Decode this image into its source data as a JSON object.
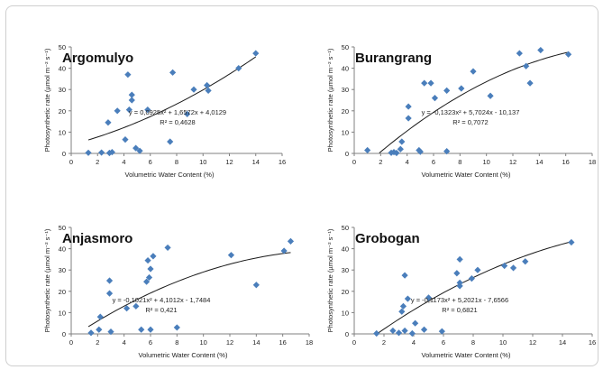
{
  "colors": {
    "marker": "#4a7ebb",
    "curve": "#1a1a1a",
    "axis": "#808080",
    "text": "#222222"
  },
  "chart_data": [
    {
      "type": "scatter",
      "title": "Argomulyo",
      "xlabel": "Volumetric Water Content (%)",
      "ylabel": "Photosynthetic rate (µmol m⁻² s⁻¹)",
      "xlim": [
        0,
        16
      ],
      "ylim": [
        0,
        50
      ],
      "xticks": [
        0,
        2,
        4,
        6,
        8,
        10,
        12,
        14,
        16
      ],
      "yticks": [
        0,
        10,
        20,
        30,
        40,
        50
      ],
      "trend": {
        "a": 0.0925,
        "b": 1.6572,
        "c": 4.0129,
        "x_range": [
          1.3,
          14.0
        ]
      },
      "equation": "y = 0,0925x² + 1,6572x + 4,0129",
      "r2": "R² = 0,4628",
      "points": [
        [
          1.3,
          0.3
        ],
        [
          2.3,
          0.4
        ],
        [
          2.8,
          14.5
        ],
        [
          2.9,
          0.2
        ],
        [
          3.1,
          0.6
        ],
        [
          3.5,
          20
        ],
        [
          4.1,
          6.5
        ],
        [
          4.3,
          37
        ],
        [
          4.4,
          20.5
        ],
        [
          4.6,
          27.5
        ],
        [
          4.6,
          25
        ],
        [
          4.9,
          2.5
        ],
        [
          5.2,
          1.2
        ],
        [
          5.8,
          20.5
        ],
        [
          7.5,
          5.5
        ],
        [
          7.7,
          38
        ],
        [
          8.8,
          18.5
        ],
        [
          9.3,
          30
        ],
        [
          10.3,
          32
        ],
        [
          10.4,
          29.5
        ],
        [
          12.7,
          40
        ],
        [
          14.0,
          47
        ]
      ]
    },
    {
      "type": "scatter",
      "title": "Burangrang",
      "xlabel": "Volumetric Water Content (%)",
      "ylabel": "Photosynthetic rate (µmol m⁻² s⁻¹)",
      "xlim": [
        0,
        18
      ],
      "ylim": [
        0,
        50
      ],
      "xticks": [
        0,
        2,
        4,
        6,
        8,
        10,
        12,
        14,
        16,
        18
      ],
      "yticks": [
        0,
        10,
        20,
        30,
        40,
        50
      ],
      "trend": {
        "a": -0.1323,
        "b": 5.7024,
        "c": -10.137,
        "x_range": [
          1.9,
          16.2
        ]
      },
      "equation": "y = -0,1323x² + 5,7024x - 10,137",
      "r2": "R² = 0,7072",
      "points": [
        [
          1.0,
          1.5
        ],
        [
          2.8,
          0.3
        ],
        [
          3.0,
          0.6
        ],
        [
          3.2,
          0.2
        ],
        [
          3.5,
          2
        ],
        [
          3.6,
          5.5
        ],
        [
          4.1,
          22
        ],
        [
          4.1,
          16.5
        ],
        [
          4.9,
          1.5
        ],
        [
          5.0,
          0.8
        ],
        [
          5.3,
          33
        ],
        [
          5.8,
          33
        ],
        [
          6.1,
          26
        ],
        [
          7.0,
          1
        ],
        [
          7.0,
          29.5
        ],
        [
          8.1,
          30.5
        ],
        [
          9.0,
          38.5
        ],
        [
          10.3,
          27
        ],
        [
          12.5,
          47
        ],
        [
          13.0,
          41
        ],
        [
          13.3,
          33
        ],
        [
          14.1,
          48.5
        ],
        [
          16.2,
          46.5
        ]
      ]
    },
    {
      "type": "scatter",
      "title": "Anjasmoro",
      "xlabel": "Volumetric Water Content (%)",
      "ylabel": "Photosynthetic rate (µmol m⁻² s⁻¹)",
      "xlim": [
        0,
        18
      ],
      "ylim": [
        0,
        50
      ],
      "xticks": [
        0,
        2,
        4,
        6,
        8,
        10,
        12,
        14,
        16,
        18
      ],
      "yticks": [
        0,
        10,
        20,
        30,
        40,
        50
      ],
      "trend": {
        "a": -0.1021,
        "b": 4.1012,
        "c": -1.7484,
        "x_range": [
          1.3,
          16.6
        ]
      },
      "equation": "y = -0,1021x² + 4,1012x - 1,7484",
      "r2": "R² = 0,421",
      "points": [
        [
          1.5,
          0.5
        ],
        [
          2.1,
          2
        ],
        [
          2.2,
          8
        ],
        [
          2.9,
          25
        ],
        [
          2.9,
          19
        ],
        [
          3.0,
          1
        ],
        [
          4.2,
          12
        ],
        [
          4.9,
          13
        ],
        [
          5.3,
          2
        ],
        [
          5.7,
          24.5
        ],
        [
          5.8,
          34.5
        ],
        [
          5.9,
          26.5
        ],
        [
          6.0,
          30.5
        ],
        [
          6.0,
          2
        ],
        [
          6.2,
          36.5
        ],
        [
          7.3,
          40.5
        ],
        [
          8.0,
          3
        ],
        [
          12.1,
          37
        ],
        [
          14.0,
          23
        ],
        [
          16.1,
          39
        ],
        [
          16.6,
          43.5
        ]
      ]
    },
    {
      "type": "scatter",
      "title": "Grobogan",
      "xlabel": "Volumetric Water Content (%)",
      "ylabel": "Photosynthetic rate (µmol m⁻² s⁻¹)",
      "xlim": [
        0,
        16
      ],
      "ylim": [
        0,
        50
      ],
      "xticks": [
        0,
        2,
        4,
        6,
        8,
        10,
        12,
        14,
        16
      ],
      "yticks": [
        0,
        10,
        20,
        30,
        40,
        50
      ],
      "trend": {
        "a": -0.1173,
        "b": 5.2021,
        "c": -7.6566,
        "x_range": [
          1.5,
          14.6
        ]
      },
      "equation": "y = -0,1173x² + 5,2021x - 7,6566",
      "r2": "R² = 0,6821",
      "points": [
        [
          1.5,
          0.2
        ],
        [
          2.6,
          1.5
        ],
        [
          3.0,
          0.5
        ],
        [
          3.2,
          10.5
        ],
        [
          3.3,
          13
        ],
        [
          3.4,
          27.5
        ],
        [
          3.6,
          16.5
        ],
        [
          3.4,
          1.5
        ],
        [
          3.9,
          0.2
        ],
        [
          4.1,
          5
        ],
        [
          4.7,
          2
        ],
        [
          5.0,
          17
        ],
        [
          5.9,
          1.2
        ],
        [
          6.9,
          28.5
        ],
        [
          7.1,
          35
        ],
        [
          7.1,
          24
        ],
        [
          7.1,
          22.5
        ],
        [
          7.9,
          26
        ],
        [
          8.3,
          30
        ],
        [
          10.1,
          32
        ],
        [
          10.7,
          31
        ],
        [
          11.5,
          34
        ],
        [
          14.6,
          43
        ]
      ]
    }
  ]
}
